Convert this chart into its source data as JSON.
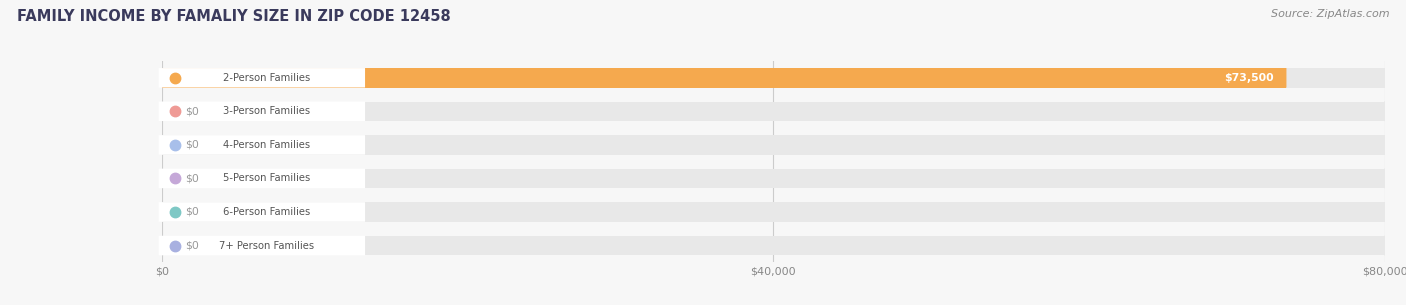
{
  "title": "FAMILY INCOME BY FAMALIY SIZE IN ZIP CODE 12458",
  "source": "Source: ZipAtlas.com",
  "categories": [
    "2-Person Families",
    "3-Person Families",
    "4-Person Families",
    "5-Person Families",
    "6-Person Families",
    "7+ Person Families"
  ],
  "values": [
    73500,
    0,
    0,
    0,
    0,
    0
  ],
  "bar_colors": [
    "#F5A94E",
    "#EF9A95",
    "#A8BFEA",
    "#C5A8D8",
    "#7EC8C5",
    "#A8B0E0"
  ],
  "xlim": [
    0,
    80000
  ],
  "xticks": [
    0,
    40000,
    80000
  ],
  "xtick_labels": [
    "$0",
    "$40,000",
    "$80,000"
  ],
  "bar_track_color": "#E8E8E8",
  "bg_color": "#F7F7F7",
  "title_color": "#3a3a5c",
  "source_color": "#888888",
  "title_fontsize": 10.5,
  "source_fontsize": 8,
  "bar_height": 0.58,
  "value_nonzero": "$73,500",
  "value_zero": "$0",
  "label_text_color": "#555555",
  "label_bg_color": "#FFFFFF",
  "value_nonzero_color": "#FFFFFF",
  "value_zero_color": "#999999"
}
